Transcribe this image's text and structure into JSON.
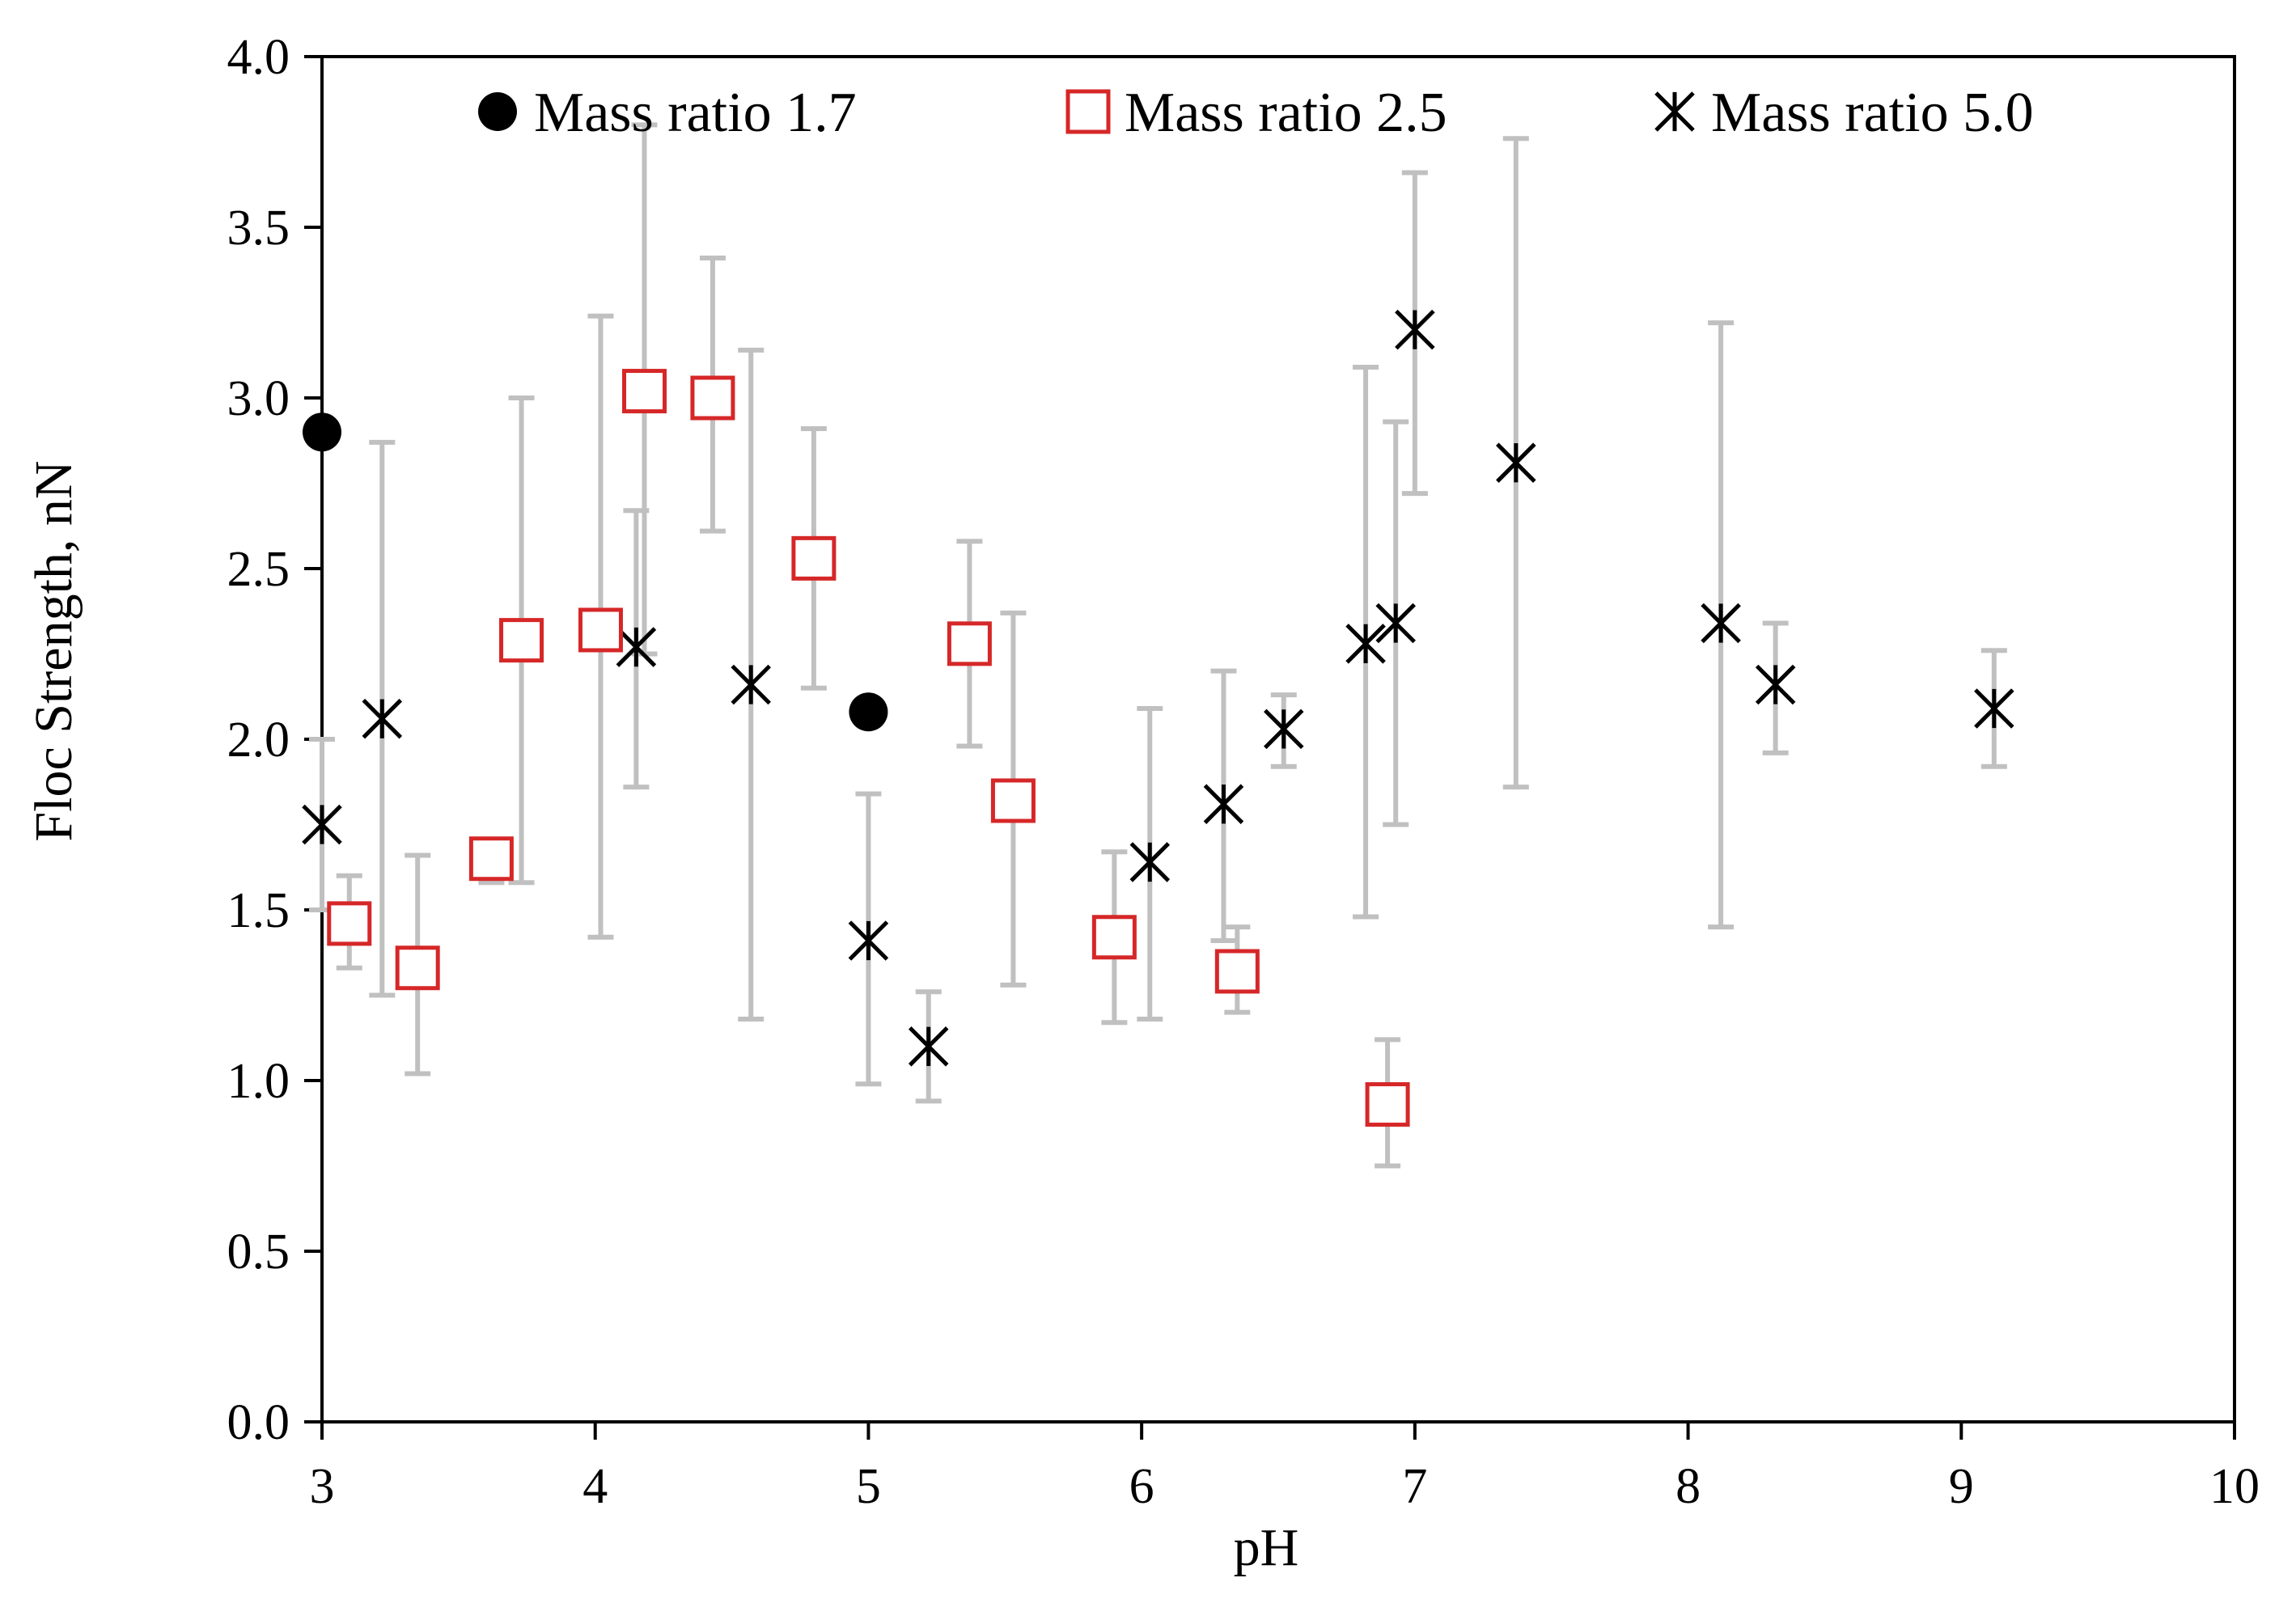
{
  "chart_data": {
    "type": "scatter",
    "title": "",
    "xlabel": "pH",
    "ylabel": "Floc Strength, nN",
    "xlim": [
      3,
      10
    ],
    "ylim": [
      0,
      4
    ],
    "xticks": [
      "3",
      "4",
      "5",
      "6",
      "7",
      "8",
      "9",
      "10"
    ],
    "yticks": [
      "0.0",
      "0.5",
      "1.0",
      "1.5",
      "2.0",
      "2.5",
      "3.0",
      "3.5",
      "4.0"
    ],
    "grid": false,
    "legend_position": "top",
    "error_bar_color": "#c0c0c0",
    "series": [
      {
        "name": "Mass ratio 1.7",
        "marker": "filled-circle",
        "color": "#000000",
        "points": [
          {
            "x": 3.0,
            "y": 2.9
          },
          {
            "x": 5.0,
            "y": 2.08
          }
        ]
      },
      {
        "name": "Mass ratio 2.5",
        "marker": "open-square",
        "color": "#d62728",
        "points": [
          {
            "x": 3.1,
            "y": 1.46,
            "lo": 1.33,
            "hi": 1.6
          },
          {
            "x": 3.35,
            "y": 1.33,
            "lo": 1.02,
            "hi": 1.66
          },
          {
            "x": 3.62,
            "y": 1.65,
            "lo": 1.58,
            "hi": 1.7
          },
          {
            "x": 3.73,
            "y": 2.29,
            "lo": 1.58,
            "hi": 3.0
          },
          {
            "x": 4.02,
            "y": 2.32,
            "lo": 1.42,
            "hi": 3.24
          },
          {
            "x": 4.18,
            "y": 3.02,
            "lo": 2.25,
            "hi": 3.8
          },
          {
            "x": 4.43,
            "y": 3.0,
            "lo": 2.61,
            "hi": 3.41
          },
          {
            "x": 4.8,
            "y": 2.53,
            "lo": 2.15,
            "hi": 2.91
          },
          {
            "x": 5.37,
            "y": 2.28,
            "lo": 1.98,
            "hi": 2.58
          },
          {
            "x": 5.53,
            "y": 1.82,
            "lo": 1.28,
            "hi": 2.37
          },
          {
            "x": 5.9,
            "y": 1.42,
            "lo": 1.17,
            "hi": 1.67
          },
          {
            "x": 6.35,
            "y": 1.32,
            "lo": 1.2,
            "hi": 1.45
          },
          {
            "x": 6.9,
            "y": 0.93,
            "lo": 0.75,
            "hi": 1.12
          }
        ]
      },
      {
        "name": "Mass ratio 5.0",
        "marker": "asterisk",
        "color": "#000000",
        "points": [
          {
            "x": 3.0,
            "y": 1.75,
            "lo": 1.5,
            "hi": 2.0
          },
          {
            "x": 3.22,
            "y": 2.06,
            "lo": 1.25,
            "hi": 2.87
          },
          {
            "x": 4.15,
            "y": 2.27,
            "lo": 1.86,
            "hi": 2.67
          },
          {
            "x": 4.57,
            "y": 2.16,
            "lo": 1.18,
            "hi": 3.14
          },
          {
            "x": 5.0,
            "y": 1.41,
            "lo": 0.99,
            "hi": 1.84
          },
          {
            "x": 5.22,
            "y": 1.1,
            "lo": 0.94,
            "hi": 1.26
          },
          {
            "x": 6.03,
            "y": 1.64,
            "lo": 1.18,
            "hi": 2.09
          },
          {
            "x": 6.3,
            "y": 1.81,
            "lo": 1.41,
            "hi": 2.2
          },
          {
            "x": 6.52,
            "y": 2.03,
            "lo": 1.92,
            "hi": 2.13
          },
          {
            "x": 6.82,
            "y": 2.28,
            "lo": 1.48,
            "hi": 3.09
          },
          {
            "x": 6.93,
            "y": 2.34,
            "lo": 1.75,
            "hi": 2.93
          },
          {
            "x": 7.0,
            "y": 3.2,
            "lo": 2.72,
            "hi": 3.66
          },
          {
            "x": 7.37,
            "y": 2.81,
            "lo": 1.86,
            "hi": 3.76
          },
          {
            "x": 8.12,
            "y": 2.34,
            "lo": 1.45,
            "hi": 3.22
          },
          {
            "x": 8.32,
            "y": 2.16,
            "lo": 1.96,
            "hi": 2.34
          },
          {
            "x": 9.12,
            "y": 2.09,
            "lo": 1.92,
            "hi": 2.26
          }
        ]
      }
    ]
  }
}
